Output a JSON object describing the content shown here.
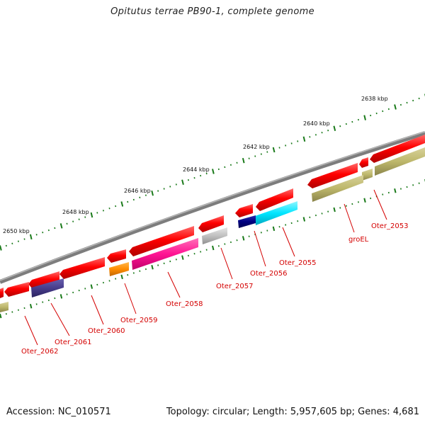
{
  "title": "Opitutus terrae PB90-1, complete genome",
  "accession": "Accession: NC_010571",
  "topology": "Topology: circular; Length: 5,957,605 bp; Genes: 4,681",
  "kbp_labels": [
    "2638 kbp",
    "2640 kbp",
    "2642 kbp",
    "2644 kbp",
    "2646 kbp",
    "2648 kbp",
    "2650 kbp"
  ],
  "gene_labels": [
    "Oter_2053",
    "groEL",
    "Oter_2055",
    "Oter_2056",
    "Oter_2057",
    "Oter_2058",
    "Oter_2059",
    "Oter_2060",
    "Oter_2061",
    "Oter_2062"
  ],
  "colors": {
    "backbone": "#7d7d7d",
    "gene_forward": "#ff0000",
    "label": "#d40000",
    "tick": "#1a7a1a",
    "olive": "#bdb76b",
    "purple": "#483d8b",
    "orange": "#ff8c00",
    "pink": "#ff1493",
    "gray": "#c0c0c0",
    "navy": "#000080",
    "cyan": "#00e5ff"
  }
}
